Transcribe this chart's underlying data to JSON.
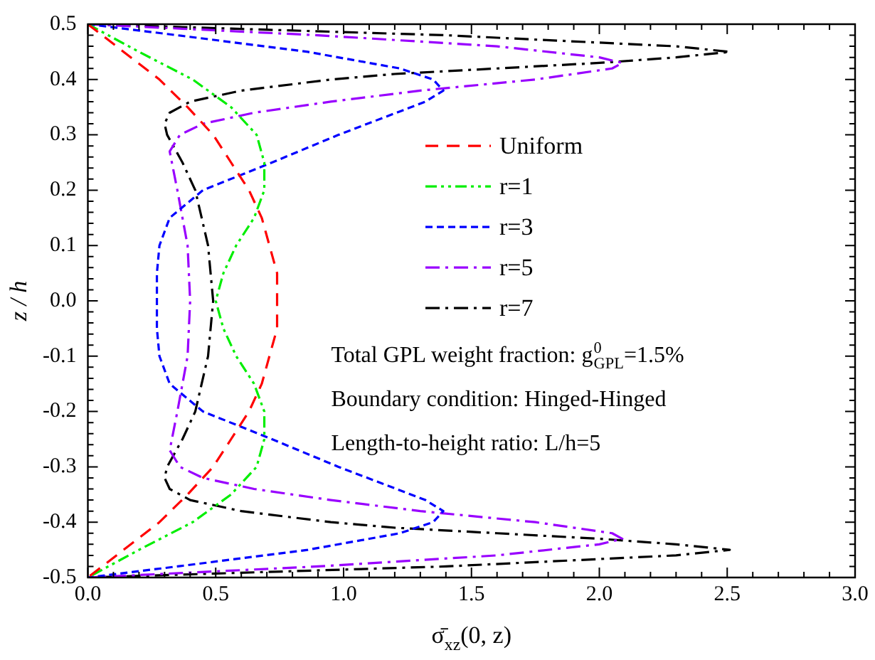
{
  "chart_data": {
    "type": "line",
    "xlabel": "σ̄$_{xz}$(0, z)",
    "ylabel": "z / h",
    "xlim": [
      0,
      3
    ],
    "xticks": [
      {
        "value": 0,
        "label": "0.0"
      },
      {
        "value": 0.5,
        "label": "0.5"
      },
      {
        "value": 1,
        "label": "1.0"
      },
      {
        "value": 1.5,
        "label": "1.5"
      },
      {
        "value": 2,
        "label": "2.0"
      },
      {
        "value": 2.5,
        "label": "2.5"
      },
      {
        "value": 3,
        "label": "3.0"
      }
    ],
    "ylim": [
      -0.5,
      0.5
    ],
    "yticks": [
      -0.5,
      -0.4,
      -0.3,
      -0.2,
      -0.1,
      {
        "value": 0,
        "label": "0.0"
      },
      0.1,
      0.2,
      0.3,
      0.4,
      0.5
    ],
    "legend": "center",
    "grid": false,
    "marker": "none",
    "series": [
      {
        "name": "Uniform",
        "color": "#ff0000",
        "line_style": "dashed",
        "x": [
          0,
          0.14,
          0.28,
          0.39,
          0.49,
          0.56,
          0.63,
          0.68,
          0.71,
          0.74,
          0.74,
          0.74,
          0.71,
          0.68,
          0.63,
          0.56,
          0.49,
          0.39,
          0.28,
          0.14,
          0
        ],
        "values": [
          0.5,
          0.45,
          0.4,
          0.35,
          0.3,
          0.25,
          0.2,
          0.15,
          0.1,
          0.05,
          0,
          -0.05,
          -0.1,
          -0.15,
          -0.2,
          -0.25,
          -0.3,
          -0.35,
          -0.4,
          -0.45,
          -0.5
        ]
      },
      {
        "name": "r=1",
        "color": "#00ee00",
        "line_style": "dashdotdot",
        "x": [
          0,
          0.2,
          0.41,
          0.56,
          0.66,
          0.69,
          0.69,
          0.65,
          0.58,
          0.53,
          0.5,
          0.53,
          0.58,
          0.65,
          0.69,
          0.69,
          0.66,
          0.56,
          0.41,
          0.2,
          0
        ],
        "values": [
          0.5,
          0.45,
          0.4,
          0.35,
          0.3,
          0.25,
          0.2,
          0.15,
          0.1,
          0.05,
          0,
          -0.05,
          -0.1,
          -0.15,
          -0.2,
          -0.25,
          -0.3,
          -0.35,
          -0.4,
          -0.45,
          -0.5
        ]
      },
      {
        "name": "r=3",
        "color": "#0000ff",
        "line_style": "shortdash",
        "x": [
          0,
          0.35,
          0.86,
          1.22,
          1.35,
          1.39,
          1.32,
          1.15,
          0.98,
          0.72,
          0.45,
          0.32,
          0.28,
          0.27,
          0.27,
          0.27,
          0.28,
          0.32,
          0.45,
          0.72,
          0.98,
          1.15,
          1.32,
          1.39,
          1.35,
          1.22,
          0.86,
          0.35,
          0
        ],
        "values": [
          0.5,
          0.48,
          0.45,
          0.42,
          0.4,
          0.38,
          0.36,
          0.33,
          0.3,
          0.25,
          0.2,
          0.15,
          0.1,
          0.05,
          0,
          -0.05,
          -0.1,
          -0.15,
          -0.2,
          -0.25,
          -0.3,
          -0.33,
          -0.36,
          -0.38,
          -0.4,
          -0.42,
          -0.45,
          -0.48,
          -0.5
        ]
      },
      {
        "name": "r=5",
        "color": "#9900ff",
        "line_style": "dashdot",
        "x": [
          0,
          0.9,
          1.6,
          2.0,
          2.09,
          2.05,
          1.75,
          1.3,
          0.95,
          0.65,
          0.45,
          0.36,
          0.32,
          0.35,
          0.39,
          0.4,
          0.39,
          0.35,
          0.32,
          0.36,
          0.45,
          0.65,
          0.95,
          1.3,
          1.75,
          2.05,
          2.09,
          2.0,
          1.6,
          0.9,
          0
        ],
        "values": [
          0.5,
          0.48,
          0.46,
          0.44,
          0.43,
          0.42,
          0.4,
          0.38,
          0.36,
          0.34,
          0.32,
          0.3,
          0.27,
          0.2,
          0.1,
          0,
          -0.1,
          -0.2,
          -0.27,
          -0.3,
          -0.32,
          -0.34,
          -0.36,
          -0.38,
          -0.4,
          -0.42,
          -0.43,
          -0.44,
          -0.46,
          -0.48,
          -0.5
        ]
      },
      {
        "name": "r=7",
        "color": "#000000",
        "line_style": "dashdot",
        "x": [
          0,
          1.4,
          2.3,
          2.51,
          2.3,
          2.0,
          1.6,
          1.2,
          0.95,
          0.6,
          0.4,
          0.32,
          0.3,
          0.31,
          0.37,
          0.42,
          0.47,
          0.49,
          0.47,
          0.42,
          0.37,
          0.31,
          0.3,
          0.32,
          0.4,
          0.6,
          0.95,
          1.2,
          1.6,
          2.0,
          2.3,
          2.51,
          2.3,
          1.4,
          0
        ],
        "values": [
          0.5,
          0.48,
          0.46,
          0.45,
          0.44,
          0.43,
          0.42,
          0.41,
          0.4,
          0.38,
          0.36,
          0.34,
          0.32,
          0.3,
          0.25,
          0.2,
          0.1,
          0,
          -0.1,
          -0.2,
          -0.25,
          -0.3,
          -0.32,
          -0.34,
          -0.36,
          -0.38,
          -0.4,
          -0.41,
          -0.42,
          -0.43,
          -0.44,
          -0.45,
          -0.46,
          -0.48,
          -0.5
        ]
      }
    ],
    "annotations": [
      "Total GPL weight fraction: g$^{0}$$_{GPL}$=1.5%",
      "Boundary condition: Hinged-Hinged",
      "Length-to-height ratio: L/h=5"
    ]
  }
}
